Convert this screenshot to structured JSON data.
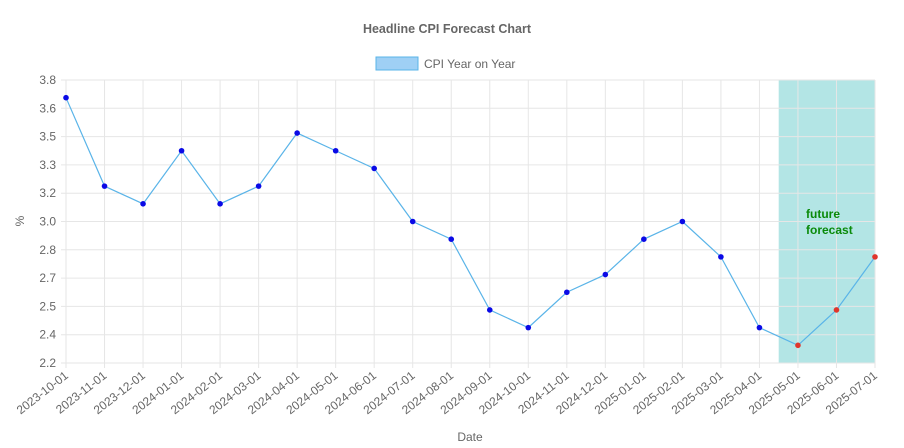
{
  "chart_data": {
    "type": "line",
    "title": "Headline CPI Forecast Chart",
    "xlabel": "Date",
    "ylabel": "%",
    "ylim": [
      2.2,
      3.8
    ],
    "yticks": [
      "2.2",
      "2.4",
      "2.5",
      "2.7",
      "2.8",
      "3.0",
      "3.2",
      "3.3",
      "3.5",
      "3.6",
      "3.8"
    ],
    "grid": true,
    "legend_position": "top-center",
    "categories": [
      "2023-10-01",
      "2023-11-01",
      "2023-12-01",
      "2024-01-01",
      "2024-02-01",
      "2024-03-01",
      "2024-04-01",
      "2024-05-01",
      "2024-06-01",
      "2024-07-01",
      "2024-08-01",
      "2024-09-01",
      "2024-10-01",
      "2024-11-01",
      "2024-12-01",
      "2025-01-01",
      "2025-02-01",
      "2025-03-01",
      "2025-04-01",
      "2025-05-01",
      "2025-06-01",
      "2025-07-01"
    ],
    "series": [
      {
        "name": "CPI Year on Year",
        "values": [
          3.7,
          3.2,
          3.1,
          3.4,
          3.1,
          3.2,
          3.5,
          3.4,
          3.3,
          3.0,
          2.9,
          2.5,
          2.4,
          2.6,
          2.7,
          2.9,
          3.0,
          2.8,
          2.4,
          2.3,
          2.5,
          2.8
        ],
        "line_color": "#5ab4e8",
        "point_color": "#0a0ae6",
        "forecast_point_color": "#e0352b",
        "legend_fill": "#9fd0f5",
        "legend_stroke": "#5ab4e8"
      }
    ],
    "forecast_start_index": 19,
    "forecast_region_color": "#b3e5e5",
    "annotation": {
      "text_lines": [
        "future",
        "forecast"
      ],
      "color": "#0a8a0a"
    }
  }
}
